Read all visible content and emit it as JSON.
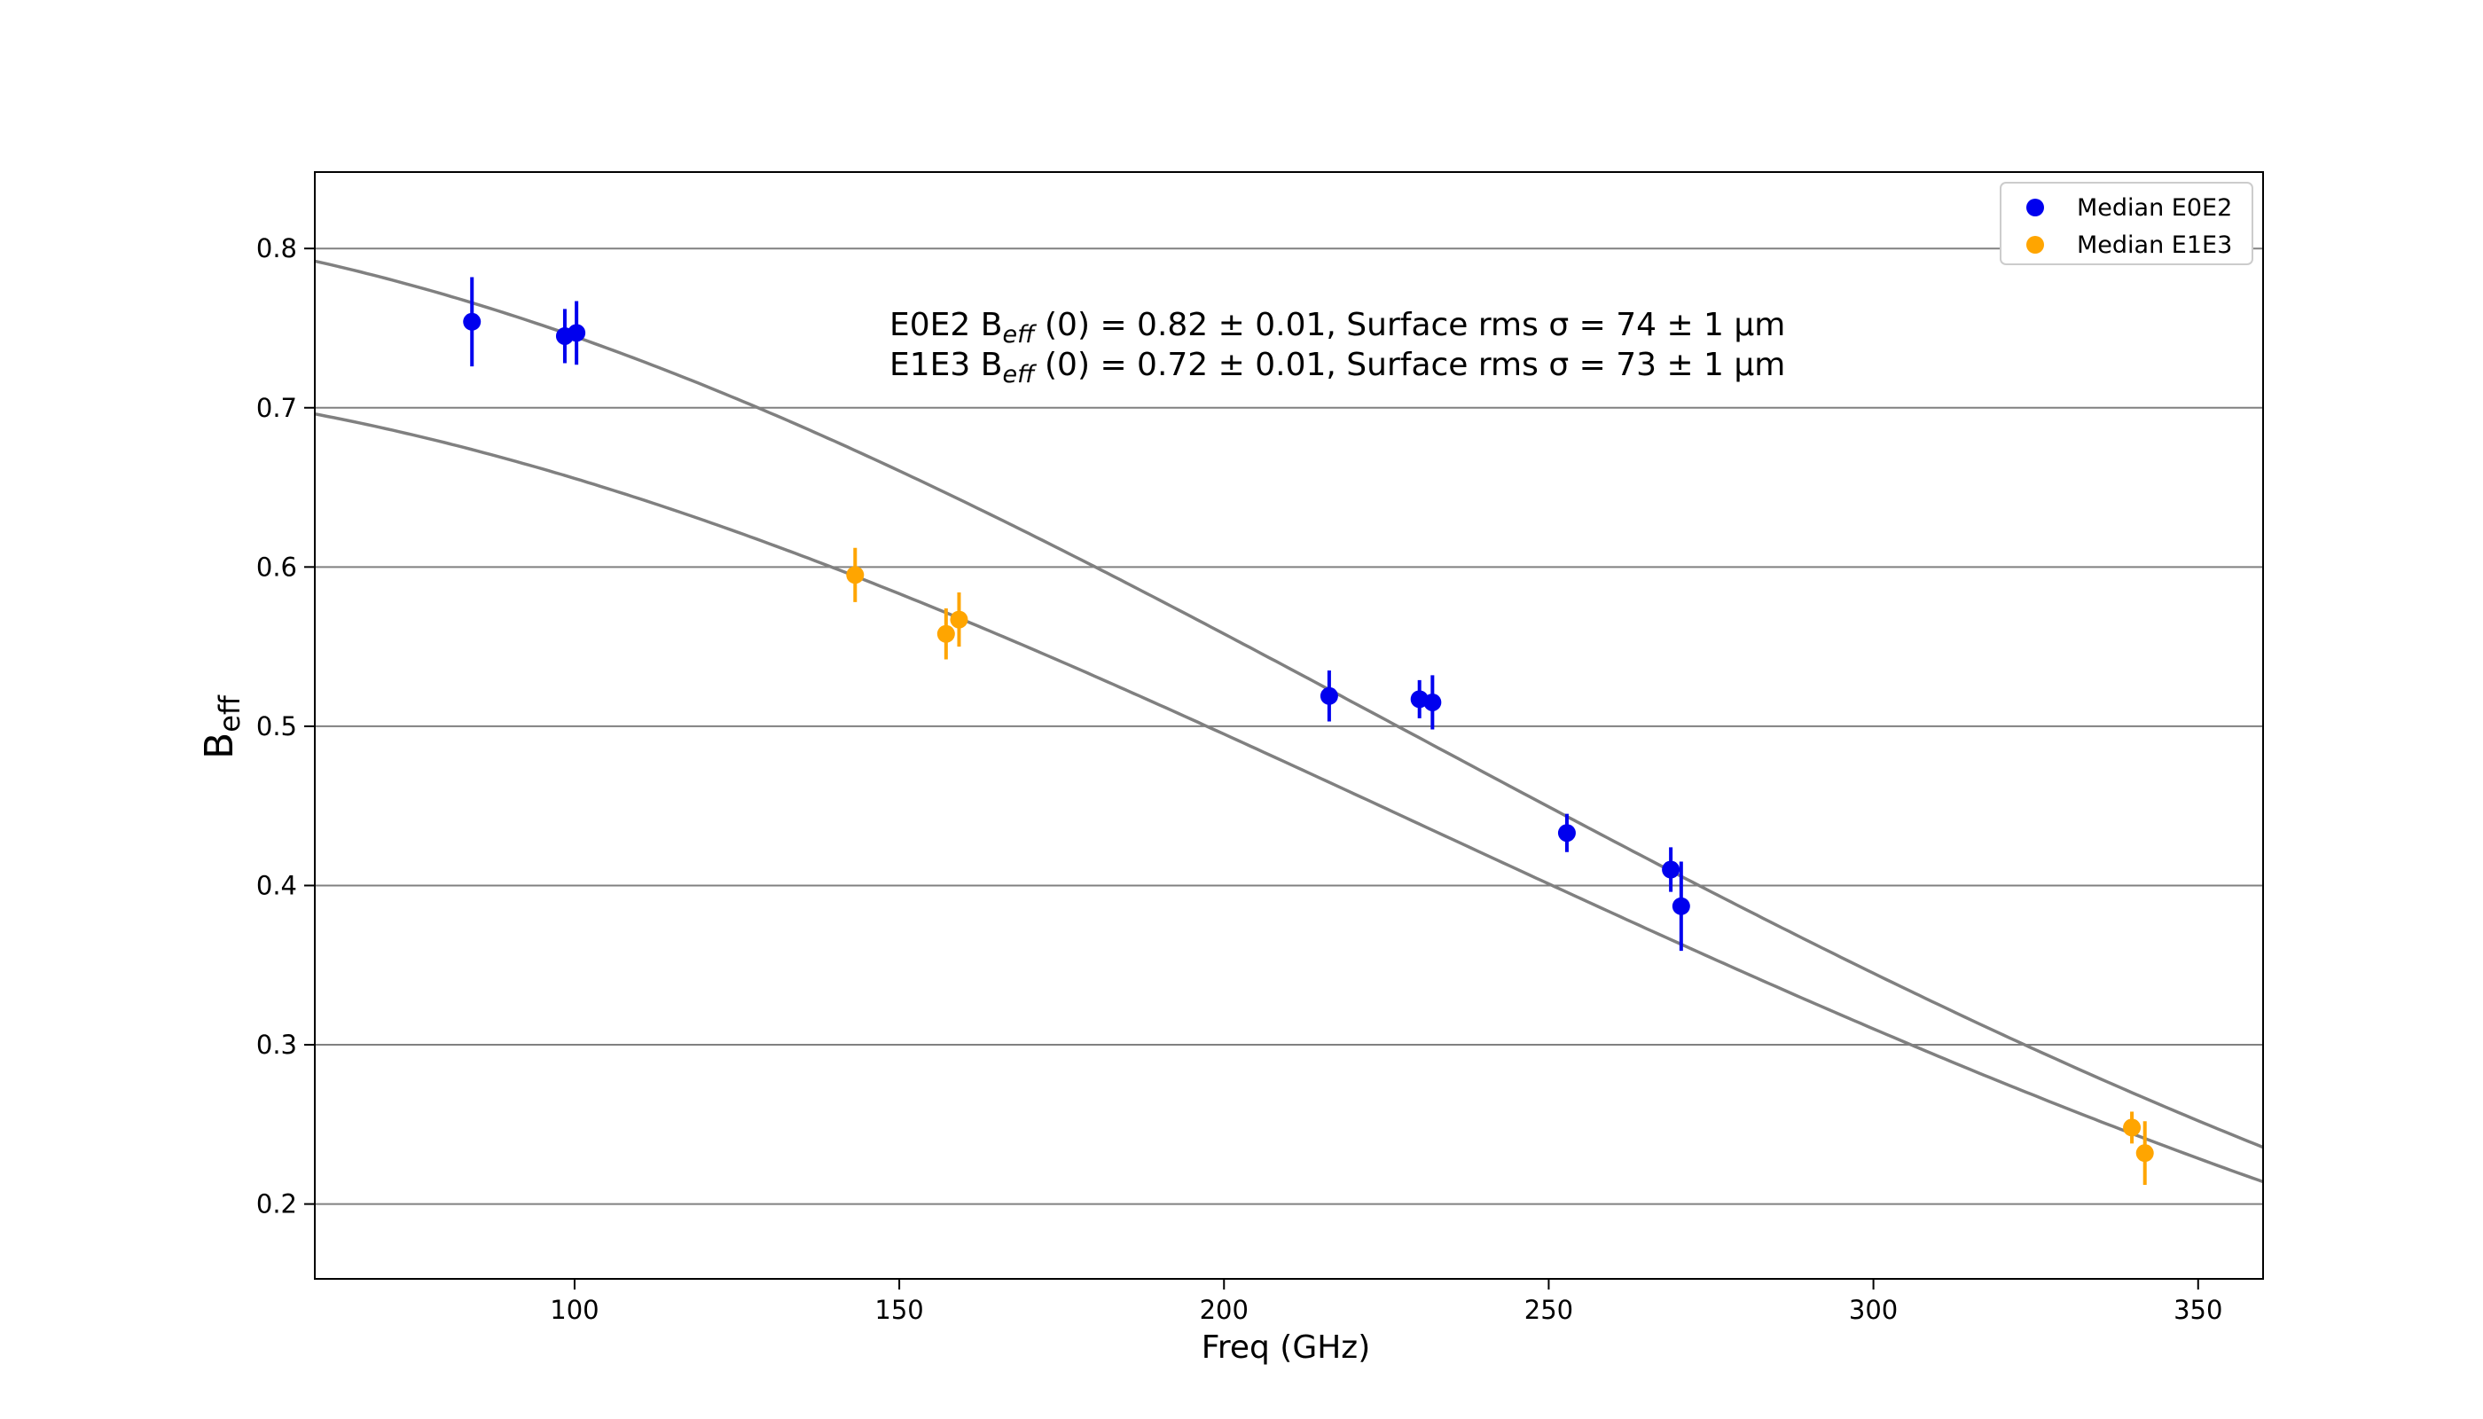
{
  "chart_data": {
    "type": "scatter",
    "title": "",
    "xlabel": "Freq (GHz)",
    "ylabel": {
      "main": "B",
      "sub": "eff"
    },
    "xlim": [
      60,
      360
    ],
    "ylim": [
      0.153,
      0.848
    ],
    "xticks": [
      100,
      150,
      200,
      250,
      300,
      350
    ],
    "yticks": [
      0.2,
      0.3,
      0.4,
      0.5,
      0.6,
      0.7,
      0.8
    ],
    "grid": "horizontal",
    "legend_position": "top-right",
    "series": [
      {
        "name": "Median E0E2",
        "color": "#0000ee",
        "points": [
          {
            "x": 84.2,
            "y": 0.754,
            "err": 0.028
          },
          {
            "x": 98.5,
            "y": 0.745,
            "err": 0.017
          },
          {
            "x": 100.3,
            "y": 0.747,
            "err": 0.02
          },
          {
            "x": 216.2,
            "y": 0.519,
            "err": 0.016
          },
          {
            "x": 230.1,
            "y": 0.517,
            "err": 0.012
          },
          {
            "x": 232.1,
            "y": 0.515,
            "err": 0.017
          },
          {
            "x": 252.8,
            "y": 0.433,
            "err": 0.012
          },
          {
            "x": 268.8,
            "y": 0.41,
            "err": 0.014
          },
          {
            "x": 270.4,
            "y": 0.387,
            "err": 0.028
          }
        ]
      },
      {
        "name": "Median E1E3",
        "color": "#ffa500",
        "points": [
          {
            "x": 143.2,
            "y": 0.595,
            "err": 0.017
          },
          {
            "x": 157.2,
            "y": 0.558,
            "err": 0.016
          },
          {
            "x": 159.2,
            "y": 0.567,
            "err": 0.017
          },
          {
            "x": 339.8,
            "y": 0.248,
            "err": 0.01
          },
          {
            "x": 341.8,
            "y": 0.232,
            "err": 0.02
          }
        ]
      }
    ],
    "fits": [
      {
        "label": "E0E2",
        "B0": 0.82,
        "sigma_um": 74,
        "line_color": "#808080",
        "annotation": {
          "prefix": "E0E2 B",
          "sub": "eff",
          "rest": " (0) = 0.82 ± 0.01,  Surface rms  σ = 74 ± 1 μm"
        }
      },
      {
        "label": "E1E3",
        "B0": 0.72,
        "sigma_um": 73,
        "line_color": "#808080",
        "annotation": {
          "prefix": "E1E3 B",
          "sub": "eff",
          "rest": " (0) = 0.72 ± 0.01,  Surface rms  σ = 73 ± 1 μm"
        }
      }
    ]
  }
}
